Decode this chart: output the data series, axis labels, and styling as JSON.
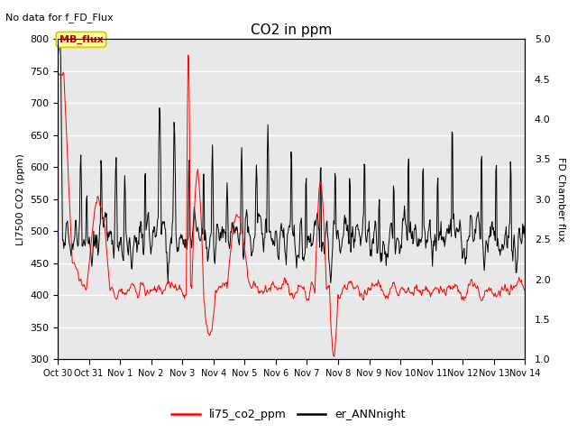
{
  "title": "CO2 in ppm",
  "top_left_text": "No data for f_FD_Flux",
  "ylabel_left": "LI7500 CO2 (ppm)",
  "ylabel_right": "FD Chamber flux",
  "ylim_left": [
    300,
    800
  ],
  "ylim_right": [
    1.0,
    5.0
  ],
  "yticks_left": [
    300,
    350,
    400,
    450,
    500,
    550,
    600,
    650,
    700,
    750,
    800
  ],
  "yticks_right": [
    1.0,
    1.5,
    2.0,
    2.5,
    3.0,
    3.5,
    4.0,
    4.5,
    5.0
  ],
  "xtick_labels": [
    "Oct 30",
    "Oct 31",
    "Nov 1",
    "Nov 2",
    "Nov 3",
    "Nov 4",
    "Nov 5",
    "Nov 6",
    "Nov 7",
    "Nov 8",
    "Nov 9",
    "Nov 10",
    "Nov 11",
    "Nov 12",
    "Nov 13",
    "Nov 14"
  ],
  "legend_label_red": "li75_co2_ppm",
  "legend_label_black": "er_ANNnight",
  "mb_flux_label": "MB_flux",
  "plot_bg_color": "#ffffff",
  "axes_bg_color": "#e8e8e8",
  "line_color_red": "#ff0000",
  "line_color_black": "#000000",
  "mb_flux_box_facecolor": "#ffff99",
  "mb_flux_text_color": "#cc0000",
  "mb_flux_box_edgecolor": "#cccc00",
  "grid_color": "#ffffff"
}
